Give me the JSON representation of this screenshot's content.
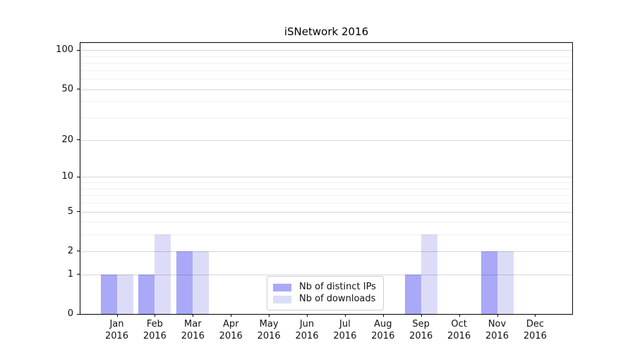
{
  "chart_data": {
    "type": "bar",
    "title": "iSNetwork 2016",
    "xlabel": "",
    "ylabel": "",
    "categories": [
      {
        "month": "Jan",
        "year": "2016"
      },
      {
        "month": "Feb",
        "year": "2016"
      },
      {
        "month": "Mar",
        "year": "2016"
      },
      {
        "month": "Apr",
        "year": "2016"
      },
      {
        "month": "May",
        "year": "2016"
      },
      {
        "month": "Jun",
        "year": "2016"
      },
      {
        "month": "Jul",
        "year": "2016"
      },
      {
        "month": "Aug",
        "year": "2016"
      },
      {
        "month": "Sep",
        "year": "2016"
      },
      {
        "month": "Oct",
        "year": "2016"
      },
      {
        "month": "Nov",
        "year": "2016"
      },
      {
        "month": "Dec",
        "year": "2016"
      }
    ],
    "series": [
      {
        "name": "Nb of distinct IPs",
        "color": "#a9a9f7",
        "values": [
          1,
          1,
          2,
          0,
          0,
          0,
          0,
          0,
          1,
          0,
          2,
          0
        ]
      },
      {
        "name": "Nb of downloads",
        "color": "#dcdcf9",
        "values": [
          1,
          3,
          2,
          0,
          0,
          0,
          0,
          0,
          3,
          0,
          2,
          0
        ]
      }
    ],
    "y_axis": {
      "scale": "log(1+x)",
      "ticks": [
        0,
        1,
        2,
        5,
        10,
        20,
        50,
        100
      ],
      "minor_ticks": [
        3,
        4,
        6,
        7,
        8,
        9,
        30,
        40,
        60,
        70,
        80,
        90
      ],
      "max": 113.6
    },
    "legend": {
      "position": "lower center"
    },
    "grid": "on, drawn above bars"
  }
}
